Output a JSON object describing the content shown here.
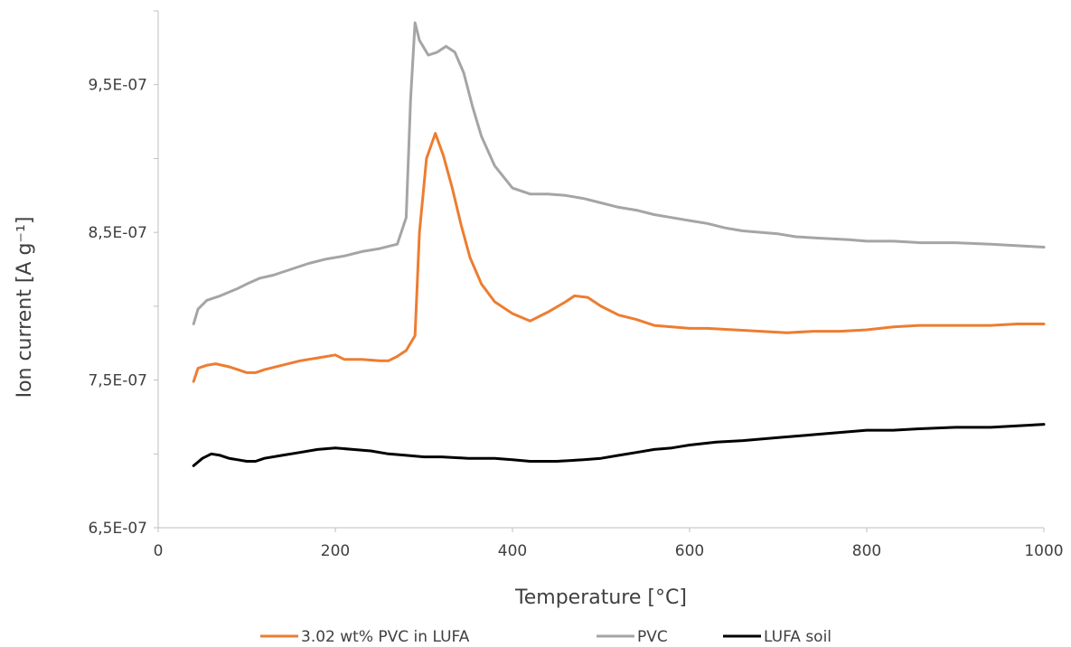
{
  "chart_data": {
    "type": "line",
    "xlabel": "Temperature [°C]",
    "ylabel": "Ion current [A g⁻¹]",
    "xlim": [
      0,
      1000
    ],
    "ylim": [
      6.5e-07,
      1e-06
    ],
    "x_ticks": [
      0,
      200,
      400,
      600,
      800,
      1000
    ],
    "x_tick_labels": [
      "0",
      "200",
      "400",
      "600",
      "800",
      "1000"
    ],
    "y_ticks": [
      6.5e-07,
      7.5e-07,
      8.5e-07,
      9.5e-07
    ],
    "y_tick_labels": [
      "6,5E-07",
      "7,5E-07",
      "8,5E-07",
      "9,5E-07"
    ],
    "grid": false,
    "legend_position": "bottom",
    "series": [
      {
        "name": "3.02 wt% PVC in LUFA",
        "color": "#ED7D31",
        "points": [
          [
            40,
            7.49e-07
          ],
          [
            45,
            7.58e-07
          ],
          [
            55,
            7.6e-07
          ],
          [
            65,
            7.61e-07
          ],
          [
            80,
            7.59e-07
          ],
          [
            90,
            7.57e-07
          ],
          [
            100,
            7.55e-07
          ],
          [
            110,
            7.55e-07
          ],
          [
            120,
            7.57e-07
          ],
          [
            140,
            7.6e-07
          ],
          [
            160,
            7.63e-07
          ],
          [
            180,
            7.65e-07
          ],
          [
            200,
            7.67e-07
          ],
          [
            210,
            7.64e-07
          ],
          [
            230,
            7.64e-07
          ],
          [
            250,
            7.63e-07
          ],
          [
            260,
            7.63e-07
          ],
          [
            270,
            7.66e-07
          ],
          [
            280,
            7.7e-07
          ],
          [
            290,
            7.8e-07
          ],
          [
            295,
            8.5e-07
          ],
          [
            303,
            9e-07
          ],
          [
            313,
            9.17e-07
          ],
          [
            322,
            9.02e-07
          ],
          [
            332,
            8.8e-07
          ],
          [
            342,
            8.55e-07
          ],
          [
            352,
            8.33e-07
          ],
          [
            365,
            8.15e-07
          ],
          [
            380,
            8.03e-07
          ],
          [
            400,
            7.95e-07
          ],
          [
            420,
            7.9e-07
          ],
          [
            440,
            7.96e-07
          ],
          [
            460,
            8.03e-07
          ],
          [
            470,
            8.07e-07
          ],
          [
            485,
            8.06e-07
          ],
          [
            500,
            8e-07
          ],
          [
            520,
            7.94e-07
          ],
          [
            540,
            7.91e-07
          ],
          [
            560,
            7.87e-07
          ],
          [
            580,
            7.86e-07
          ],
          [
            600,
            7.85e-07
          ],
          [
            620,
            7.85e-07
          ],
          [
            650,
            7.84e-07
          ],
          [
            680,
            7.83e-07
          ],
          [
            710,
            7.82e-07
          ],
          [
            740,
            7.83e-07
          ],
          [
            770,
            7.83e-07
          ],
          [
            800,
            7.84e-07
          ],
          [
            830,
            7.86e-07
          ],
          [
            860,
            7.87e-07
          ],
          [
            900,
            7.87e-07
          ],
          [
            940,
            7.87e-07
          ],
          [
            970,
            7.88e-07
          ],
          [
            1000,
            7.88e-07
          ]
        ]
      },
      {
        "name": "PVC",
        "color": "#A5A5A5",
        "points": [
          [
            40,
            7.88e-07
          ],
          [
            45,
            7.98e-07
          ],
          [
            55,
            8.04e-07
          ],
          [
            70,
            8.07e-07
          ],
          [
            90,
            8.12e-07
          ],
          [
            100,
            8.15e-07
          ],
          [
            115,
            8.19e-07
          ],
          [
            130,
            8.21e-07
          ],
          [
            150,
            8.25e-07
          ],
          [
            170,
            8.29e-07
          ],
          [
            190,
            8.32e-07
          ],
          [
            210,
            8.34e-07
          ],
          [
            230,
            8.37e-07
          ],
          [
            250,
            8.39e-07
          ],
          [
            270,
            8.42e-07
          ],
          [
            280,
            8.6e-07
          ],
          [
            285,
            9.4e-07
          ],
          [
            290,
            9.92e-07
          ],
          [
            295,
            9.8e-07
          ],
          [
            305,
            9.7e-07
          ],
          [
            315,
            9.72e-07
          ],
          [
            325,
            9.76e-07
          ],
          [
            335,
            9.72e-07
          ],
          [
            345,
            9.58e-07
          ],
          [
            355,
            9.35e-07
          ],
          [
            365,
            9.15e-07
          ],
          [
            380,
            8.95e-07
          ],
          [
            400,
            8.8e-07
          ],
          [
            420,
            8.76e-07
          ],
          [
            440,
            8.76e-07
          ],
          [
            460,
            8.75e-07
          ],
          [
            480,
            8.73e-07
          ],
          [
            500,
            8.7e-07
          ],
          [
            520,
            8.67e-07
          ],
          [
            540,
            8.65e-07
          ],
          [
            560,
            8.62e-07
          ],
          [
            580,
            8.6e-07
          ],
          [
            600,
            8.58e-07
          ],
          [
            620,
            8.56e-07
          ],
          [
            640,
            8.53e-07
          ],
          [
            660,
            8.51e-07
          ],
          [
            680,
            8.5e-07
          ],
          [
            700,
            8.49e-07
          ],
          [
            720,
            8.47e-07
          ],
          [
            750,
            8.46e-07
          ],
          [
            780,
            8.45e-07
          ],
          [
            800,
            8.44e-07
          ],
          [
            830,
            8.44e-07
          ],
          [
            860,
            8.43e-07
          ],
          [
            900,
            8.43e-07
          ],
          [
            940,
            8.42e-07
          ],
          [
            970,
            8.41e-07
          ],
          [
            1000,
            8.4e-07
          ]
        ]
      },
      {
        "name": "LUFA soil",
        "color": "#000000",
        "points": [
          [
            40,
            6.92e-07
          ],
          [
            50,
            6.97e-07
          ],
          [
            60,
            7e-07
          ],
          [
            70,
            6.99e-07
          ],
          [
            80,
            6.97e-07
          ],
          [
            90,
            6.96e-07
          ],
          [
            100,
            6.95e-07
          ],
          [
            110,
            6.95e-07
          ],
          [
            120,
            6.97e-07
          ],
          [
            140,
            6.99e-07
          ],
          [
            160,
            7.01e-07
          ],
          [
            180,
            7.03e-07
          ],
          [
            200,
            7.04e-07
          ],
          [
            220,
            7.03e-07
          ],
          [
            240,
            7.02e-07
          ],
          [
            260,
            7e-07
          ],
          [
            280,
            6.99e-07
          ],
          [
            300,
            6.98e-07
          ],
          [
            320,
            6.98e-07
          ],
          [
            350,
            6.97e-07
          ],
          [
            380,
            6.97e-07
          ],
          [
            400,
            6.96e-07
          ],
          [
            420,
            6.95e-07
          ],
          [
            450,
            6.95e-07
          ],
          [
            480,
            6.96e-07
          ],
          [
            500,
            6.97e-07
          ],
          [
            520,
            6.99e-07
          ],
          [
            540,
            7.01e-07
          ],
          [
            560,
            7.03e-07
          ],
          [
            580,
            7.04e-07
          ],
          [
            600,
            7.06e-07
          ],
          [
            630,
            7.08e-07
          ],
          [
            660,
            7.09e-07
          ],
          [
            700,
            7.11e-07
          ],
          [
            740,
            7.13e-07
          ],
          [
            780,
            7.15e-07
          ],
          [
            800,
            7.16e-07
          ],
          [
            830,
            7.16e-07
          ],
          [
            860,
            7.17e-07
          ],
          [
            900,
            7.18e-07
          ],
          [
            940,
            7.18e-07
          ],
          [
            970,
            7.19e-07
          ],
          [
            1000,
            7.2e-07
          ]
        ]
      }
    ]
  }
}
